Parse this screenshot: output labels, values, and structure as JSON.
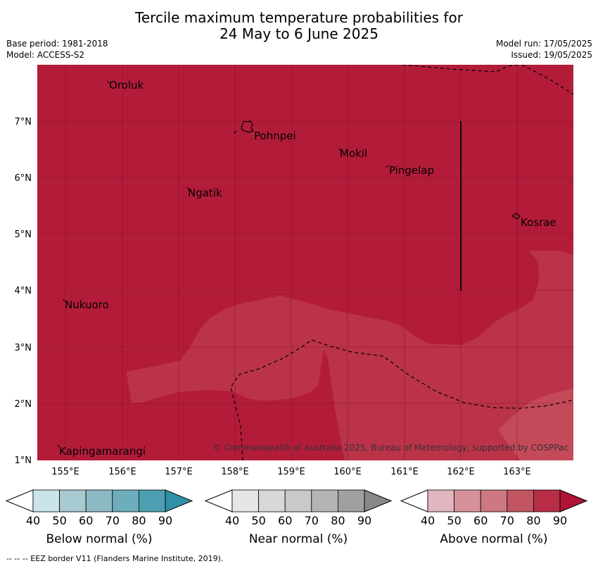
{
  "title": {
    "line1": "Tercile maximum temperature probabilities for",
    "line2": "24 May to 6 June 2025"
  },
  "info": {
    "base_period": "Base period: 1981-2018",
    "model": "Model: ACCESS-S2",
    "model_run": "Model run: 17/05/2025",
    "issued": "Issued: 19/05/2025"
  },
  "map": {
    "lon_labels": [
      "155°E",
      "156°E",
      "157°E",
      "158°E",
      "159°E",
      "160°E",
      "161°E",
      "162°E",
      "163°E"
    ],
    "lat_labels": [
      "1°N",
      "2°N",
      "3°N",
      "4°N",
      "5°N",
      "6°N",
      "7°N"
    ],
    "places": [
      {
        "id": "oroluk",
        "name": "Oroluk"
      },
      {
        "id": "pohnpei",
        "name": "Pohnpei"
      },
      {
        "id": "mokil",
        "name": "Mokil"
      },
      {
        "id": "pingelap",
        "name": "Pingelap"
      },
      {
        "id": "ngatik",
        "name": "Ngatik"
      },
      {
        "id": "kosrae",
        "name": "Kosrae"
      },
      {
        "id": "nukuoro",
        "name": "Nukuoro"
      },
      {
        "id": "kapingamarangi",
        "name": "Kapingamarangi"
      }
    ],
    "copyright": "© Commonwealth of Australia 2025, Bureau of Meteorology, supported by COSPPac",
    "colors": {
      "above_80_90": "#b31c39",
      "above_70_80": "#bb3349",
      "above_60_70": "#c44a5a"
    }
  },
  "colorbars": [
    {
      "label": "Below normal (%)",
      "ticks": [
        "40",
        "50",
        "60",
        "70",
        "80",
        "90"
      ],
      "colors": [
        "#ffffff",
        "#cbe3ea",
        "#a7c9d0",
        "#8cbac4",
        "#6eadbb",
        "#4e9fb2",
        "#2f91a8"
      ]
    },
    {
      "label": "Near normal (%)",
      "ticks": [
        "40",
        "50",
        "60",
        "70",
        "80",
        "90"
      ],
      "colors": [
        "#ffffff",
        "#e6e6e6",
        "#d8d8d8",
        "#c9c9c9",
        "#b4b4b4",
        "#a0a0a0",
        "#888888"
      ]
    },
    {
      "label": "Above normal (%)",
      "ticks": [
        "40",
        "50",
        "60",
        "70",
        "80",
        "90"
      ],
      "colors": [
        "#ffffff",
        "#e2b6bf",
        "#d7919a",
        "#ce7882",
        "#c35462",
        "#b72d45",
        "#b01434"
      ]
    }
  ],
  "footnote": "--  --  -- EEZ border V11 (Flanders Marine Institute, 2019)."
}
